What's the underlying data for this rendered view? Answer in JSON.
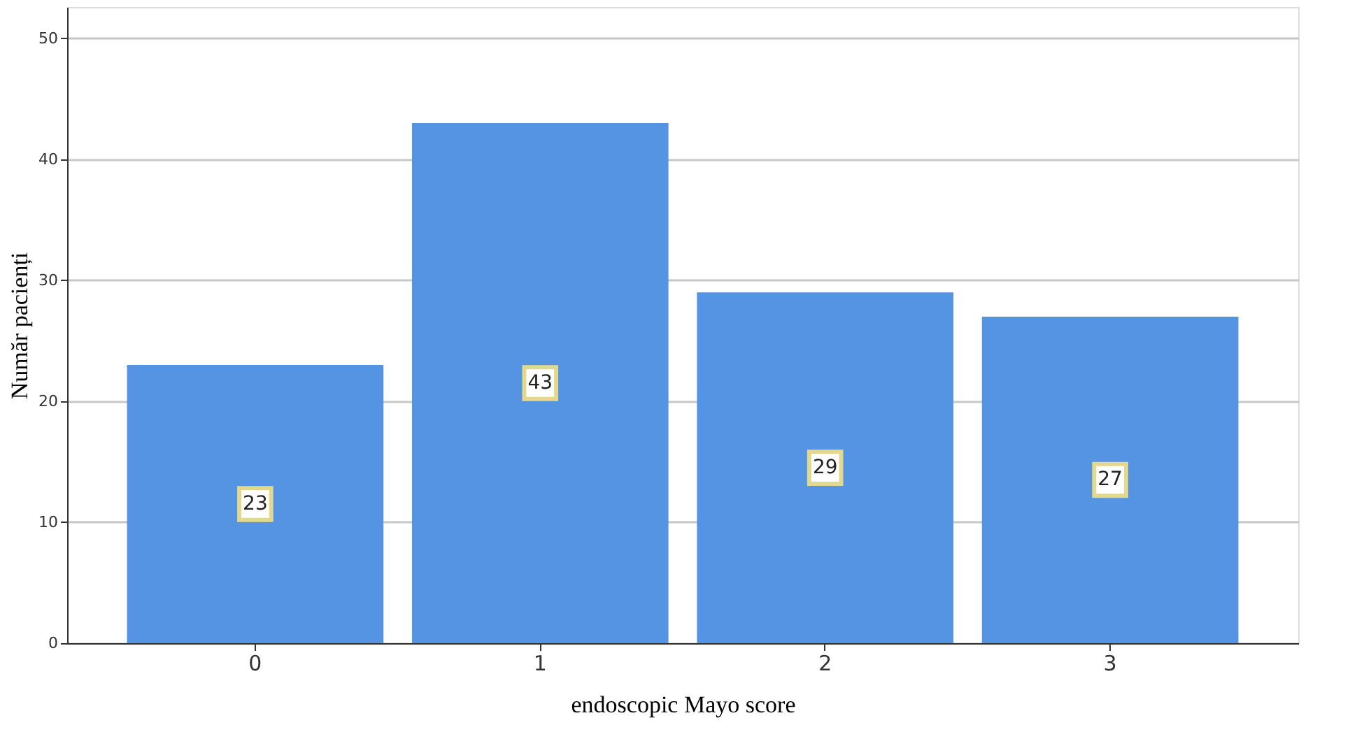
{
  "chart_data": {
    "type": "bar",
    "categories": [
      "0",
      "1",
      "2",
      "3"
    ],
    "values": [
      23,
      43,
      29,
      27
    ],
    "color": "#5594e3",
    "xlabel": "endoscopic Mayo score",
    "ylabel": "Număr pacienți",
    "ylim": [
      0,
      52.6
    ],
    "yticks": [
      0,
      10,
      20,
      30,
      40,
      50
    ],
    "grid": "y",
    "data_labels": true
  }
}
